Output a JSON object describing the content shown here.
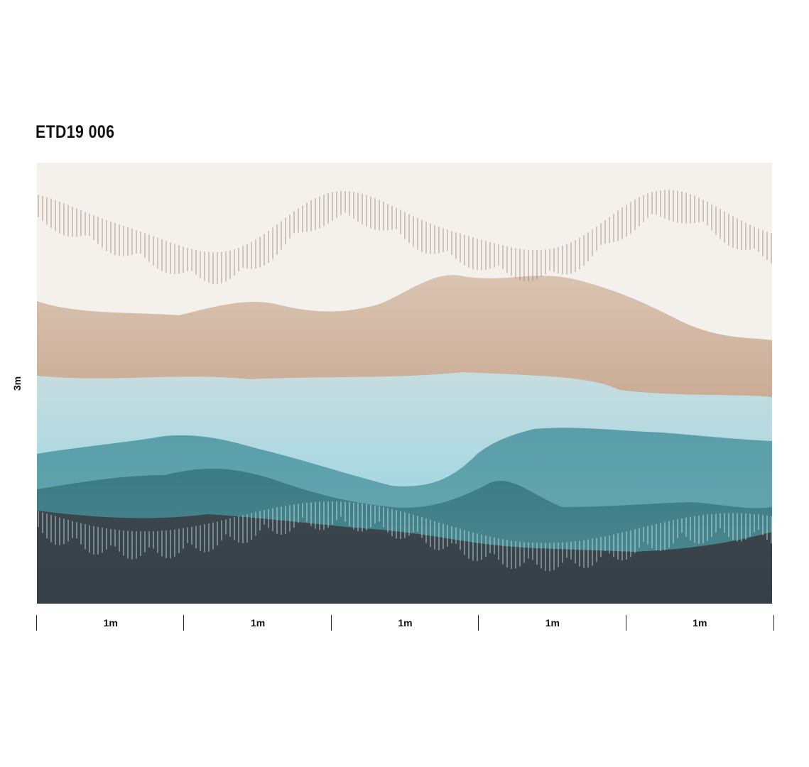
{
  "title": "ETD19 006",
  "dimensions": {
    "height_label": "3m",
    "width_segments": [
      "1m",
      "1m",
      "1m",
      "1m",
      "1m"
    ]
  },
  "colors": {
    "sky": "#f4f0eb",
    "sand": "#c9a992",
    "light_blue": "#a8d6df",
    "teal": "#5fa2ac",
    "deep_teal": "#3f7f88",
    "charcoal": "#39434a"
  }
}
